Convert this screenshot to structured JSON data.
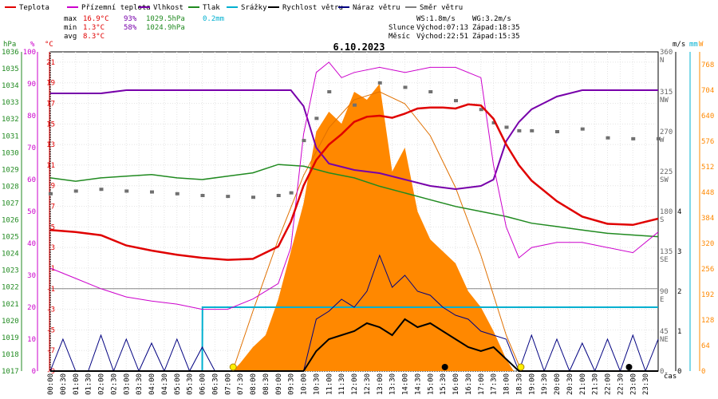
{
  "chart_data": {
    "type": "line",
    "title": "6.10.2023",
    "x_label": "čas",
    "legend": [
      {
        "name": "Teplota",
        "color": "#e00000"
      },
      {
        "name": "Přízemní teplota",
        "color": "#cc00cc"
      },
      {
        "name": "Vlhkost",
        "color": "#7700aa"
      },
      {
        "name": "Tlak",
        "color": "#208a20"
      },
      {
        "name": "Srážky",
        "color": "#00b0d0"
      },
      {
        "name": "Rychlost větru",
        "color": "#000000"
      },
      {
        "name": "Náraz větru",
        "color": "#000080"
      },
      {
        "name": "Směr větru",
        "color": "#808080"
      }
    ],
    "stats": {
      "max_label": "max",
      "max_temp": "16.9°C",
      "max_hum": "93%",
      "max_press": "1029.5hPa",
      "max_rain": "0.2mm",
      "min_label": "min",
      "min_temp": "1.3°C",
      "min_hum": "58%",
      "min_press": "1024.9hPa",
      "avg_label": "avg",
      "avg_temp": "8.3°C"
    },
    "wind_info": {
      "ws": "WS:1.8m/s",
      "wg": "WG:3.2m/s"
    },
    "sun_info": {
      "label": "Slunce",
      "rise": "Východ:07:13",
      "set": "Západ:18:35"
    },
    "moon_info": {
      "label": "Měsíc",
      "rise": "Východ:22:51",
      "set": "Západ:15:35"
    },
    "x_ticks": [
      "00:00",
      "00:30",
      "01:00",
      "01:30",
      "02:00",
      "02:30",
      "03:00",
      "03:30",
      "04:00",
      "04:30",
      "05:00",
      "05:30",
      "06:00",
      "06:30",
      "07:00",
      "07:30",
      "08:00",
      "08:30",
      "09:00",
      "09:30",
      "10:00",
      "10:30",
      "11:00",
      "11:30",
      "12:00",
      "12:30",
      "13:00",
      "13:30",
      "14:00",
      "14:30",
      "15:00",
      "15:30",
      "16:00",
      "16:30",
      "17:00",
      "17:30",
      "18:00",
      "18:30",
      "19:00",
      "19:30",
      "20:00",
      "20:30",
      "21:00",
      "21:30",
      "22:00",
      "22:30",
      "23:00",
      "23:30"
    ],
    "axes": {
      "pressure": {
        "unit": "hPa",
        "ticks": [
          "1036",
          "1035",
          "1034",
          "1033",
          "1032",
          "1031",
          "1030",
          "1029",
          "1028",
          "1027",
          "1026",
          "1025",
          "1024",
          "1023",
          "1022",
          "1021",
          "1020",
          "1019",
          "1018",
          "1017"
        ]
      },
      "humidity": {
        "unit": "%",
        "ticks": [
          "100",
          "90",
          "80",
          "70",
          "60",
          "50",
          "40",
          "30",
          "20",
          "10",
          "0"
        ]
      },
      "temperature": {
        "unit": "°C",
        "ticks": [
          "21",
          "19",
          "17",
          "15",
          "13",
          "11",
          "9",
          "7",
          "5",
          "3",
          "1",
          "-1",
          "-3",
          "-5",
          "-7",
          "-9"
        ]
      },
      "direction": {
        "ticks": [
          "360",
          "N",
          "315",
          "NW",
          "270",
          "W",
          "225",
          "SW",
          "180",
          "S",
          "135",
          "SE",
          "90",
          "E",
          "45",
          "NE",
          "0"
        ]
      },
      "wind_speed": {
        "unit": "m/s",
        "ticks": [
          "4",
          "3",
          "2",
          "1",
          "0"
        ]
      },
      "rain": {
        "unit": "mm"
      },
      "solar": {
        "unit": "W",
        "ticks": [
          "768",
          "704",
          "640",
          "576",
          "512",
          "448",
          "384",
          "320",
          "256",
          "192",
          "128",
          "64",
          "0"
        ]
      }
    },
    "series": {
      "temperature": {
        "x": [
          0,
          1,
          2,
          3,
          4,
          5,
          6,
          7,
          8,
          9,
          9.5,
          10,
          10.5,
          11,
          11.5,
          12,
          12.5,
          13,
          13.5,
          14,
          14.5,
          15,
          15.5,
          16,
          16.5,
          17,
          17.5,
          18,
          18.5,
          19,
          20,
          21,
          22,
          23,
          24
        ],
        "y": [
          4.7,
          4.5,
          4.2,
          3.2,
          2.7,
          2.3,
          2.0,
          1.8,
          1.9,
          3.1,
          5.5,
          9.0,
          11.5,
          13.0,
          14.0,
          15.2,
          15.7,
          15.8,
          15.6,
          16.0,
          16.5,
          16.6,
          16.6,
          16.5,
          16.9,
          16.8,
          15.5,
          13.0,
          11.0,
          9.5,
          7.5,
          6.0,
          5.3,
          5.2,
          5.8
        ]
      },
      "ground_temperature": {
        "x": [
          0,
          1,
          2,
          3,
          4,
          5,
          6,
          7,
          8,
          9,
          9.5,
          10,
          10.5,
          11,
          11.5,
          12,
          13,
          14,
          15,
          16,
          17,
          17.5,
          18,
          18.5,
          19,
          20,
          21,
          22,
          23,
          23.5,
          24
        ],
        "y": [
          1.0,
          0.0,
          -1.0,
          -1.8,
          -2.2,
          -2.5,
          -3.0,
          -3.0,
          -2.0,
          -0.5,
          3.0,
          14.0,
          20.0,
          21.0,
          19.5,
          20.0,
          20.5,
          20.0,
          20.5,
          20.5,
          19.5,
          11.0,
          5.0,
          2.0,
          3.0,
          3.5,
          3.5,
          3.0,
          2.5,
          3.5,
          4.5
        ]
      },
      "humidity": {
        "x": [
          0,
          2,
          3,
          4,
          5,
          6,
          7,
          8,
          9,
          9.5,
          10,
          10.5,
          11,
          12,
          13,
          14,
          15,
          16,
          17,
          17.5,
          18,
          18.5,
          19,
          20,
          21,
          22,
          23,
          24
        ],
        "y": [
          87,
          87,
          88,
          88,
          88,
          88,
          88,
          88,
          88,
          88,
          83,
          70,
          65,
          63,
          62,
          60,
          58,
          57,
          58,
          60,
          72,
          78,
          82,
          86,
          88,
          88,
          88,
          88
        ]
      },
      "pressure": {
        "x": [
          0,
          1,
          2,
          3,
          4,
          5,
          6,
          7,
          8,
          9,
          10,
          11,
          12,
          13,
          14,
          15,
          16,
          17,
          18,
          19,
          20,
          21,
          22,
          23,
          24
        ],
        "y": [
          1028.5,
          1028.3,
          1028.5,
          1028.6,
          1028.7,
          1028.5,
          1028.4,
          1028.6,
          1028.8,
          1029.3,
          1029.2,
          1028.8,
          1028.5,
          1028.0,
          1027.6,
          1027.2,
          1026.8,
          1026.5,
          1026.2,
          1025.8,
          1025.6,
          1025.4,
          1025.2,
          1025.1,
          1025.0
        ]
      },
      "wind_direction": {
        "x": [
          0,
          1,
          2,
          3,
          4,
          5,
          6,
          7,
          8,
          9,
          9.5,
          10,
          10.5,
          11,
          12,
          13,
          14,
          15,
          16,
          17,
          17.5,
          18,
          18.5,
          19,
          20,
          21,
          22,
          23,
          24
        ],
        "y": [
          200,
          203,
          205,
          203,
          202,
          200,
          198,
          197,
          196,
          198,
          201,
          260,
          285,
          315,
          300,
          325,
          320,
          315,
          305,
          295,
          280,
          275,
          271,
          271,
          270,
          273,
          263,
          262,
          262
        ]
      },
      "wind_speed": {
        "x": [
          0,
          6,
          6.5,
          7,
          8,
          9,
          9.5,
          10,
          10.5,
          11,
          11.5,
          12,
          12.5,
          13,
          13.5,
          14,
          14.5,
          15,
          15.5,
          16,
          16.5,
          17,
          17.5,
          18,
          18.5,
          19,
          20,
          21,
          22,
          23,
          24
        ],
        "y": [
          0,
          0,
          0,
          0,
          0,
          0,
          0,
          0,
          0.5,
          0.8,
          0.9,
          1.0,
          1.2,
          1.1,
          0.9,
          1.3,
          1.1,
          1.2,
          1.0,
          0.8,
          0.6,
          0.5,
          0.6,
          0.3,
          0,
          0,
          0,
          0,
          0,
          0,
          0
        ]
      },
      "wind_gust": {
        "x": [
          0,
          0.5,
          1,
          1.5,
          2,
          2.5,
          3,
          3.5,
          4,
          4.5,
          5,
          5.5,
          6,
          6.5,
          7,
          8,
          9,
          9.5,
          10,
          10.5,
          11,
          11.5,
          12,
          12.5,
          13,
          13.5,
          14,
          14.5,
          15,
          15.5,
          16,
          16.5,
          17,
          17.5,
          18,
          18.5,
          19,
          19.5,
          20,
          20.5,
          21,
          21.5,
          22,
          22.5,
          23,
          23.5,
          24
        ],
        "y": [
          0,
          0.8,
          0,
          0,
          0.9,
          0,
          0.8,
          0,
          0.7,
          0,
          0.8,
          0,
          0.6,
          0,
          0,
          0,
          0,
          0,
          0,
          1.3,
          1.5,
          1.8,
          1.6,
          2.0,
          2.9,
          2.1,
          2.4,
          2.0,
          1.9,
          1.6,
          1.4,
          1.3,
          1.0,
          0.9,
          0.8,
          0,
          0.9,
          0,
          0.8,
          0,
          0.7,
          0,
          0.8,
          0,
          0.9,
          0,
          0.8
        ]
      },
      "solar_radiation": {
        "x": [
          7.2,
          7.5,
          8,
          8.5,
          9,
          9.5,
          10,
          10.5,
          11,
          11.5,
          12,
          12.5,
          13,
          13.5,
          14,
          14.5,
          15,
          15.5,
          16,
          16.5,
          17,
          17.5,
          18,
          18.3
        ],
        "y": [
          0,
          20,
          60,
          90,
          180,
          300,
          420,
          600,
          650,
          620,
          700,
          680,
          720,
          500,
          560,
          400,
          330,
          300,
          270,
          200,
          160,
          100,
          30,
          0
        ]
      },
      "solar_clear_sky": {
        "x": [
          7.2,
          8,
          9,
          10,
          11,
          12,
          13,
          14,
          15,
          16,
          17,
          18,
          18.6
        ],
        "y": [
          0,
          150,
          330,
          490,
          610,
          680,
          700,
          670,
          590,
          460,
          290,
          90,
          0
        ]
      },
      "rain": {
        "x": [
          0,
          6,
          6.01,
          24
        ],
        "y": [
          0,
          0,
          0.2,
          0.2
        ]
      }
    }
  }
}
